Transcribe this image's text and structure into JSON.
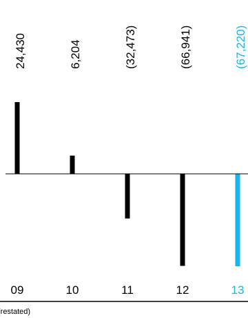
{
  "chart_data": {
    "type": "bar",
    "categories": [
      "09",
      "10",
      "11",
      "12",
      "13"
    ],
    "values": [
      24430,
      6204,
      -32473,
      -66941,
      -67220
    ],
    "value_labels": [
      "24,430",
      "6,204",
      "(32,473)",
      "(66,941)",
      "(67,220)"
    ],
    "highlight_index": 4,
    "colors": {
      "default": "#000000",
      "highlight": "#1ab4e8"
    },
    "ylim": [
      -67220,
      24430
    ],
    "grid": false,
    "legend": "none",
    "footnote": "(restated)"
  }
}
